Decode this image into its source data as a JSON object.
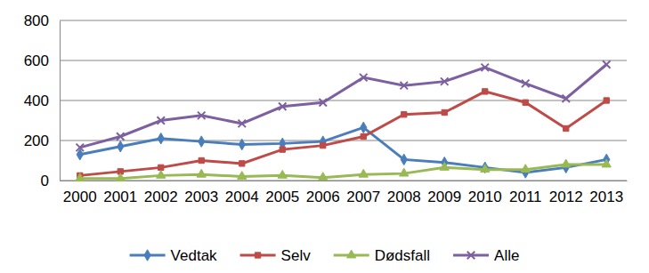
{
  "chart_data": {
    "type": "line",
    "categories": [
      "2000",
      "2001",
      "2002",
      "2003",
      "2004",
      "2005",
      "2006",
      "2007",
      "2008",
      "2009",
      "2010",
      "2011",
      "2012",
      "2013"
    ],
    "series": [
      {
        "name": "Vedtak",
        "color": "#4a7ebb",
        "marker": "diamond",
        "values": [
          130,
          170,
          210,
          195,
          180,
          185,
          195,
          265,
          105,
          90,
          65,
          40,
          65,
          105
        ]
      },
      {
        "name": "Selv",
        "color": "#be4b48",
        "marker": "square",
        "values": [
          25,
          45,
          65,
          100,
          85,
          155,
          175,
          220,
          330,
          340,
          445,
          390,
          260,
          400
        ]
      },
      {
        "name": "Dødsfall",
        "color": "#98b954",
        "marker": "triangle",
        "values": [
          10,
          10,
          25,
          30,
          20,
          25,
          15,
          30,
          35,
          65,
          55,
          55,
          80,
          80
        ]
      },
      {
        "name": "Alle",
        "color": "#7d60a0",
        "marker": "x",
        "values": [
          165,
          220,
          300,
          325,
          285,
          370,
          390,
          515,
          475,
          495,
          565,
          485,
          410,
          580
        ]
      }
    ],
    "ylim": [
      0,
      800
    ],
    "yticks": [
      0,
      200,
      400,
      600,
      800
    ],
    "grid": true,
    "legend": "bottom"
  }
}
